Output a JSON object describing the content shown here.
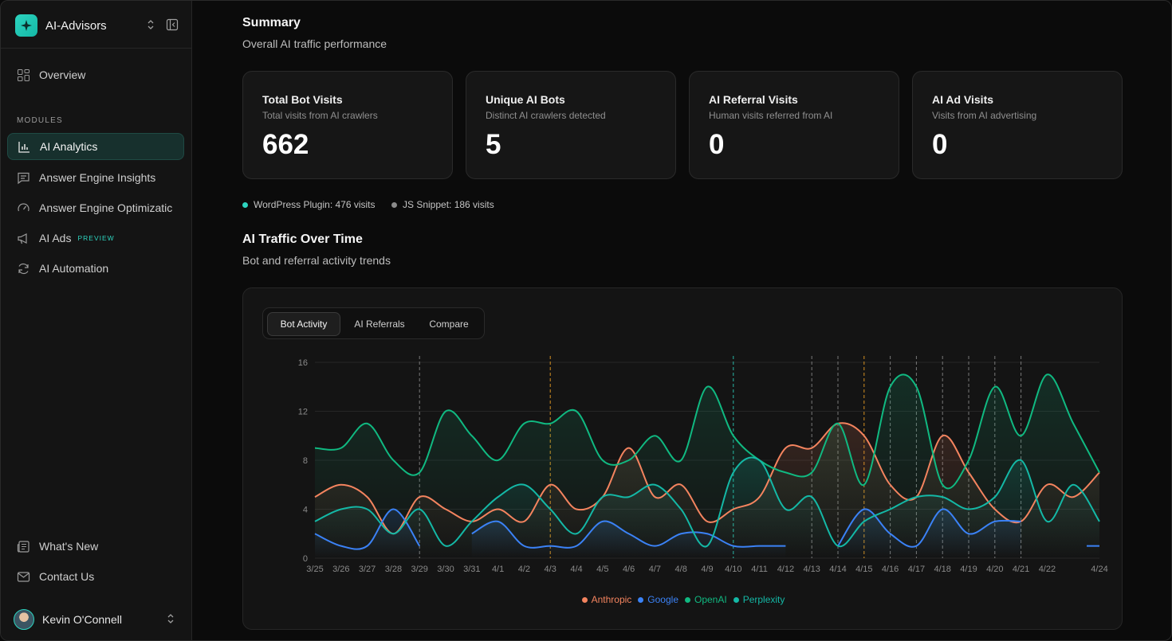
{
  "app": {
    "name": "AI-Advisors"
  },
  "sidebar": {
    "overview": "Overview",
    "modules_label": "MODULES",
    "items": [
      {
        "label": "AI Analytics",
        "icon": "bar-chart-icon",
        "active": true
      },
      {
        "label": "Answer Engine Insights",
        "icon": "message-square-icon"
      },
      {
        "label": "Answer Engine Optimizatic",
        "icon": "gauge-icon"
      },
      {
        "label": "AI Ads",
        "icon": "megaphone-icon",
        "badge": "PREVIEW"
      },
      {
        "label": "AI Automation",
        "icon": "refresh-icon"
      }
    ],
    "whats_new": "What's New",
    "contact": "Contact Us",
    "user": "Kevin O'Connell"
  },
  "summary": {
    "title": "Summary",
    "subtitle": "Overall AI traffic performance",
    "cards": [
      {
        "title": "Total Bot Visits",
        "desc": "Total visits from AI crawlers",
        "value": "662"
      },
      {
        "title": "Unique AI Bots",
        "desc": "Distinct AI crawlers detected",
        "value": "5"
      },
      {
        "title": "AI Referral Visits",
        "desc": "Human visits referred from AI",
        "value": "0"
      },
      {
        "title": "AI Ad Visits",
        "desc": "Visits from AI advertising",
        "value": "0"
      }
    ],
    "sources": [
      {
        "label": "WordPress Plugin: 476 visits",
        "color": "#2dd4bf"
      },
      {
        "label": "JS Snippet: 186 visits",
        "color": "#8a8a8a"
      }
    ]
  },
  "traffic": {
    "title": "AI Traffic Over Time",
    "subtitle": "Bot and referral activity trends",
    "tabs": [
      "Bot Activity",
      "AI Referrals",
      "Compare"
    ]
  },
  "chart_data": {
    "type": "line",
    "x": [
      "3/25",
      "3/26",
      "3/27",
      "3/28",
      "3/29",
      "3/30",
      "3/31",
      "4/1",
      "4/2",
      "4/3",
      "4/4",
      "4/5",
      "4/6",
      "4/7",
      "4/8",
      "4/9",
      "4/10",
      "4/11",
      "4/12",
      "4/13",
      "4/14",
      "4/15",
      "4/16",
      "4/17",
      "4/18",
      "4/19",
      "4/20",
      "4/21",
      "4/22",
      "4/23",
      "4/24"
    ],
    "x_tick_labels": [
      "3/25",
      "3/26",
      "3/27",
      "3/28",
      "3/29",
      "3/30",
      "3/31",
      "4/1",
      "4/2",
      "4/3",
      "4/4",
      "4/5",
      "4/6",
      "4/7",
      "4/8",
      "4/9",
      "4/10",
      "4/11",
      "4/12",
      "4/13",
      "4/14",
      "4/15",
      "4/16",
      "4/17",
      "4/18",
      "4/19",
      "4/20",
      "4/21",
      "4/22",
      "",
      "4/24"
    ],
    "y_ticks": [
      0,
      4,
      8,
      12,
      16
    ],
    "ylim": [
      0,
      16
    ],
    "grid": true,
    "legend_position": "bottom-center",
    "event_markers": [
      {
        "x": "3/29",
        "color": "#8a8a8a"
      },
      {
        "x": "4/3",
        "color": "#f5a524"
      },
      {
        "x": "4/10",
        "color": "#2dd4bf"
      },
      {
        "x": "4/13",
        "color": "#8a8a8a"
      },
      {
        "x": "4/14",
        "color": "#8a8a8a"
      },
      {
        "x": "4/15",
        "color": "#f5a524"
      },
      {
        "x": "4/16",
        "color": "#8a8a8a"
      },
      {
        "x": "4/17",
        "color": "#8a8a8a"
      },
      {
        "x": "4/18",
        "color": "#8a8a8a"
      },
      {
        "x": "4/19",
        "color": "#8a8a8a"
      },
      {
        "x": "4/20",
        "color": "#8a8a8a"
      },
      {
        "x": "4/21",
        "color": "#8a8a8a"
      }
    ],
    "series": [
      {
        "name": "Anthropic",
        "color": "#f4845f",
        "values": [
          5,
          6,
          5,
          2,
          5,
          4,
          3,
          4,
          3,
          6,
          4,
          5,
          9,
          5,
          6,
          3,
          4,
          5,
          9,
          9,
          11,
          10,
          6,
          5,
          10,
          7,
          4,
          3,
          6,
          5,
          7
        ]
      },
      {
        "name": "Google",
        "color": "#3b82f6",
        "values": [
          2,
          1,
          1,
          4,
          1,
          null,
          2,
          3,
          1,
          1,
          1,
          3,
          2,
          1,
          2,
          2,
          1,
          1,
          1,
          null,
          1,
          4,
          2,
          1,
          4,
          2,
          3,
          3,
          null,
          null,
          1
        ]
      },
      {
        "name": "OpenAI",
        "color": "#10b981",
        "values": [
          9,
          9,
          11,
          8,
          7,
          12,
          10,
          8,
          11,
          11,
          12,
          8,
          8,
          10,
          8,
          14,
          10,
          8,
          7,
          7,
          11,
          6,
          14,
          14,
          6,
          8,
          14,
          10,
          15,
          11,
          7
        ]
      },
      {
        "name": "Perplexity",
        "color": "#14b8a6",
        "values": [
          3,
          4,
          4,
          2,
          4,
          1,
          3,
          5,
          6,
          4,
          2,
          5,
          5,
          6,
          4,
          1,
          7,
          8,
          4,
          5,
          1,
          3,
          4,
          5,
          5,
          4,
          5,
          8,
          3,
          6,
          3
        ]
      }
    ]
  }
}
